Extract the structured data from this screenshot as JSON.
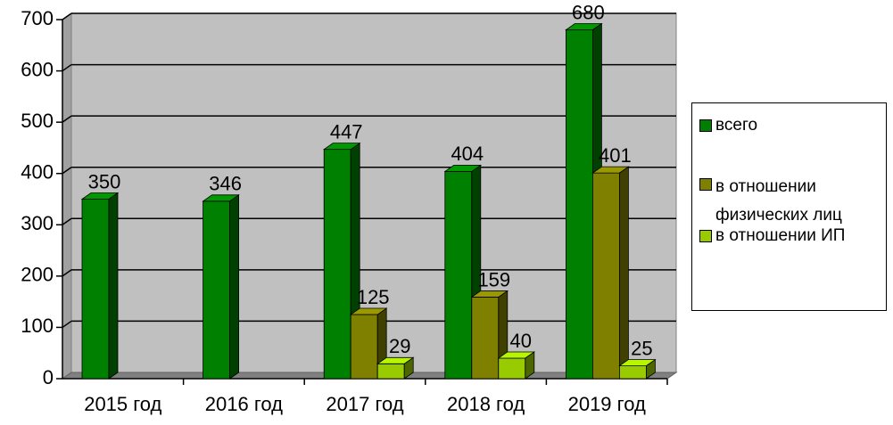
{
  "chart_data": {
    "type": "bar3d",
    "categories": [
      "2015 год",
      "2016 год",
      "2017 год",
      "2018 год",
      "2019 год"
    ],
    "series": [
      {
        "name": "всего",
        "color": "#008000",
        "values": [
          350,
          346,
          447,
          404,
          680
        ]
      },
      {
        "name": "в отношении физических лиц",
        "color": "#808000",
        "values": [
          null,
          null,
          125,
          159,
          401
        ]
      },
      {
        "name": "в отношении ИП",
        "color": "#99cc00",
        "values": [
          null,
          null,
          29,
          40,
          25
        ]
      }
    ],
    "ylim": [
      0,
      700
    ],
    "yticks": [
      0,
      100,
      200,
      300,
      400,
      500,
      600,
      700
    ],
    "grid": true,
    "legend": "right"
  }
}
